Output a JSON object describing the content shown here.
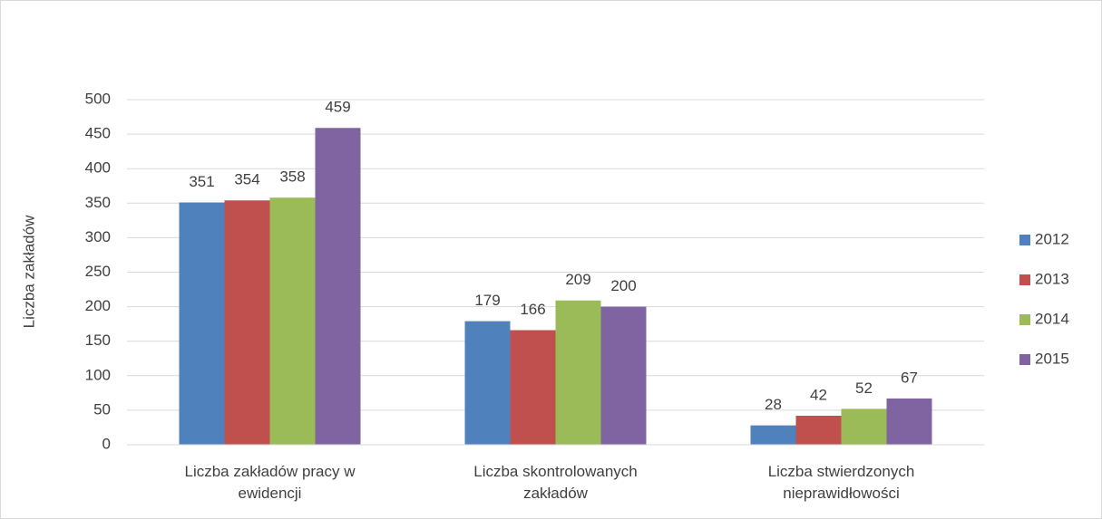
{
  "chart_data": {
    "type": "bar",
    "y_label": "Liczba zakładów",
    "categories": [
      "Liczba zakładów pracy w ewidencji",
      "Liczba skontrolowanych zakładów",
      "Liczba stwierdzonych nieprawidłowości"
    ],
    "series": [
      {
        "name": "2012",
        "color": "#4f81bd",
        "values": [
          351,
          179,
          28
        ]
      },
      {
        "name": "2013",
        "color": "#c0504d",
        "values": [
          354,
          166,
          42
        ]
      },
      {
        "name": "2014",
        "color": "#9bbb59",
        "values": [
          358,
          209,
          52
        ]
      },
      {
        "name": "2015",
        "color": "#8064a2",
        "values": [
          459,
          200,
          67
        ]
      }
    ],
    "ylim": [
      0,
      500
    ],
    "yticks": [
      0,
      50,
      100,
      150,
      200,
      250,
      300,
      350,
      400,
      450,
      500
    ],
    "grid": true,
    "legend": "right"
  }
}
